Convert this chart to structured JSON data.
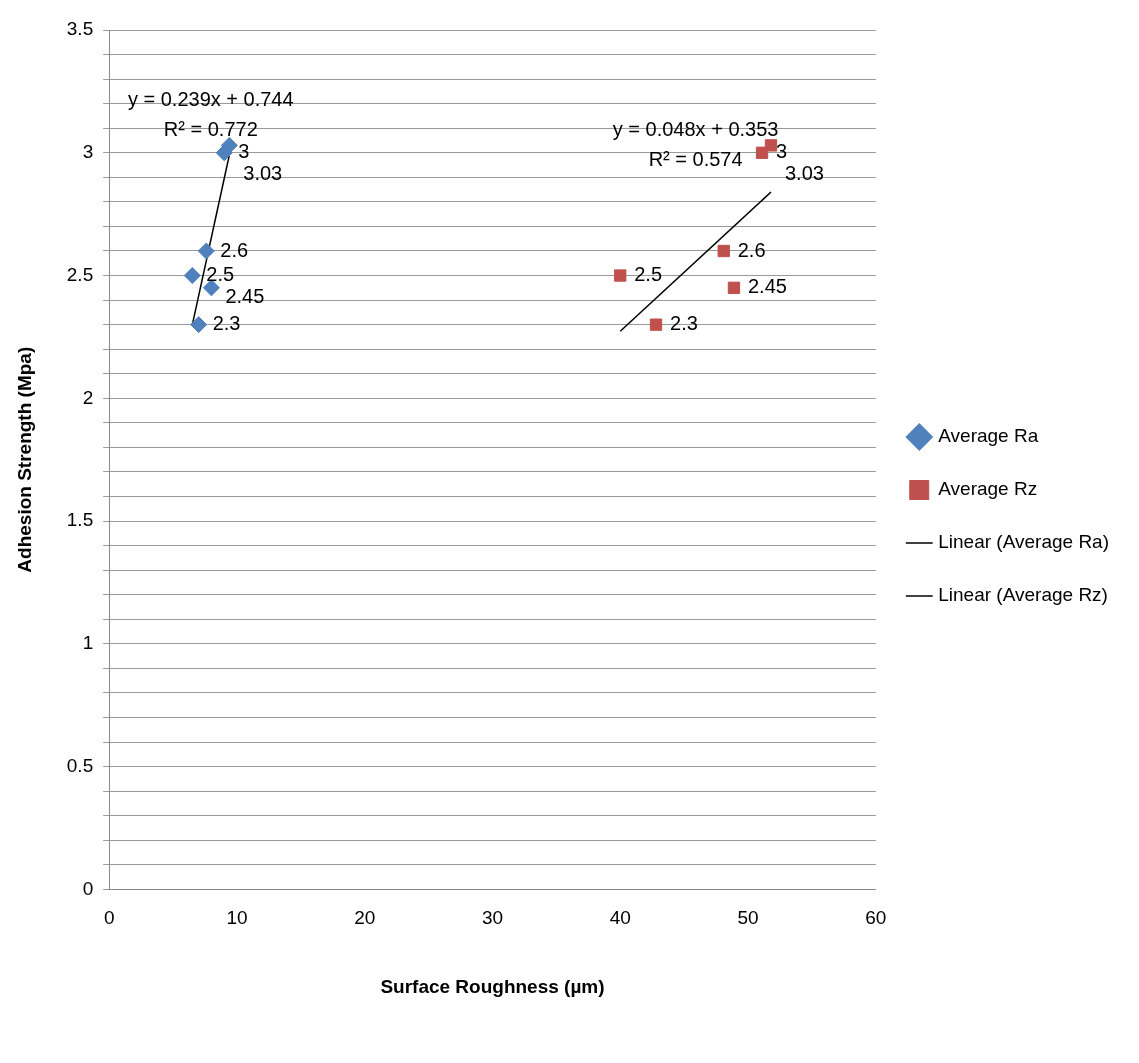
{
  "chart_data": {
    "type": "scatter",
    "xlabel": "Surface Roughness (µm)",
    "ylabel": "Adhesion Strength (Mpa)",
    "xlim": [
      0,
      60
    ],
    "xticks": [
      0,
      10,
      20,
      30,
      40,
      50,
      60
    ],
    "ylim": [
      0,
      3.5
    ],
    "yticks": [
      0,
      {
        "value": 0.1,
        "label": null
      },
      {
        "value": 0.2,
        "label": null
      },
      {
        "value": 0.3,
        "label": null
      },
      {
        "value": 0.4,
        "label": null
      },
      {
        "value": 0.5,
        "label": "0.5"
      },
      {
        "value": 0.6,
        "label": null
      },
      {
        "value": 0.7,
        "label": null
      },
      {
        "value": 0.8,
        "label": null
      },
      {
        "value": 0.9,
        "label": null
      },
      1,
      {
        "value": 1.1,
        "label": null
      },
      {
        "value": 1.2,
        "label": null
      },
      {
        "value": 1.3,
        "label": null
      },
      {
        "value": 1.4,
        "label": null
      },
      {
        "value": 1.5,
        "label": "1.5"
      },
      {
        "value": 1.6,
        "label": null
      },
      {
        "value": 1.7,
        "label": null
      },
      {
        "value": 1.8,
        "label": null
      },
      {
        "value": 1.9,
        "label": null
      },
      2,
      {
        "value": 2.1,
        "label": null
      },
      {
        "value": 2.2,
        "label": null
      },
      {
        "value": 2.3,
        "label": null
      },
      {
        "value": 2.4,
        "label": null
      },
      {
        "value": 2.5,
        "label": "2.5"
      },
      {
        "value": 2.6,
        "label": null
      },
      {
        "value": 2.7,
        "label": null
      },
      {
        "value": 2.8,
        "label": null
      },
      {
        "value": 2.9,
        "label": null
      },
      3,
      {
        "value": 3.1,
        "label": null
      },
      {
        "value": 3.2,
        "label": null
      },
      {
        "value": 3.3,
        "label": null
      },
      {
        "value": 3.4,
        "label": null
      },
      {
        "value": 3.5,
        "label": "3.5"
      }
    ],
    "grid": "y",
    "legend": "right",
    "series": [
      {
        "name": "Average Ra",
        "marker": "diamond",
        "color": "#4f81bd",
        "x": [
          7.0,
          6.5,
          7.6,
          8.0,
          9.0,
          9.4
        ],
        "values": [
          2.3,
          2.5,
          2.6,
          2.45,
          3,
          3.03
        ],
        "value_labels": [
          "2.3",
          "2.5",
          "2.6",
          "2.45",
          "3",
          "3.03"
        ]
      },
      {
        "name": "Average Rz",
        "marker": "square",
        "color": "#c0504d",
        "x": [
          42.8,
          40.0,
          48.1,
          48.9,
          51.1,
          51.8
        ],
        "values": [
          2.3,
          2.5,
          2.6,
          2.45,
          3,
          3.03
        ],
        "value_labels": [
          "2.3",
          "2.5",
          "2.6",
          "2.45",
          "3",
          "3.03"
        ]
      },
      {
        "name": "Linear (Average Ra)",
        "type": "line",
        "marker": "none",
        "color": "#000000",
        "x": [
          6.5,
          9.4
        ],
        "values": [
          2.298,
          2.99
        ]
      },
      {
        "name": "Linear (Average Rz)",
        "type": "line",
        "marker": "none",
        "color": "#000000",
        "x": [
          40.0,
          51.8
        ],
        "values": [
          2.273,
          2.84
        ]
      }
    ],
    "annotations": [
      "y = 0.239x + 0.744",
      "R² = 0.772",
      "y = 0.048x + 0.353",
      "R² = 0.574"
    ]
  }
}
